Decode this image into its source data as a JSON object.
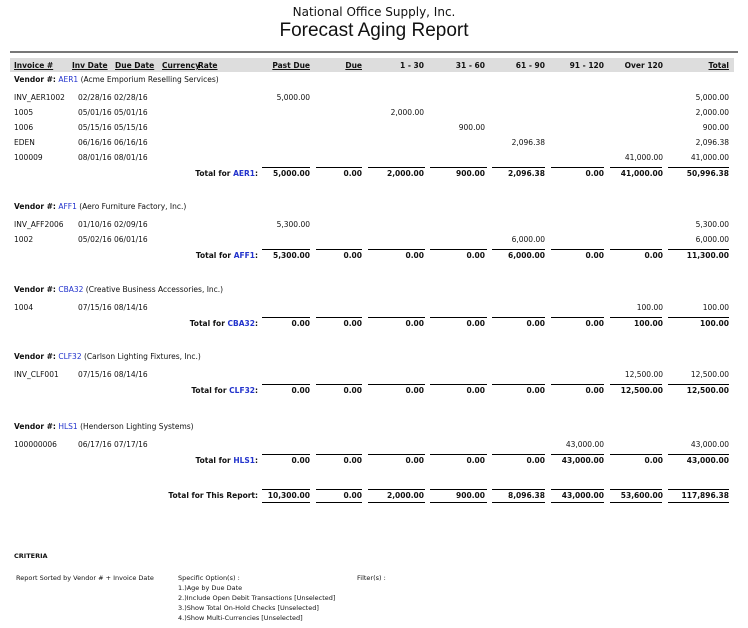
{
  "company": "National Office Supply, Inc.",
  "title": "Forecast Aging Report",
  "columns": {
    "invoice": "Invoice #",
    "inv_date": "Inv Date",
    "due_date": "Due Date",
    "currency": "Currency",
    "rate": "Rate",
    "past_due": "Past Due",
    "due": "Due",
    "d1_30": "1 - 30",
    "d31_60": "31 - 60",
    "d61_90": "61 - 90",
    "d91_120": "91 - 120",
    "over120": "Over 120",
    "total": "Total"
  },
  "vendor_label": "Vendor #:",
  "total_for_label": "Total for",
  "vendors": [
    {
      "id": "AER1",
      "name": "(Acme Emporium Reselling Services)",
      "rows": [
        {
          "invoice": "INV_AER1002",
          "inv_date": "02/28/16",
          "due_date": "02/28/16",
          "vals": [
            "5,000.00",
            "",
            "",
            "",
            "",
            "",
            "",
            "5,000.00"
          ]
        },
        {
          "invoice": "1005",
          "inv_date": "05/01/16",
          "due_date": "05/01/16",
          "vals": [
            "",
            "",
            "2,000.00",
            "",
            "",
            "",
            "",
            "2,000.00"
          ]
        },
        {
          "invoice": "1006",
          "inv_date": "05/15/16",
          "due_date": "05/15/16",
          "vals": [
            "",
            "",
            "",
            "900.00",
            "",
            "",
            "",
            "900.00"
          ]
        },
        {
          "invoice": "EDEN",
          "inv_date": "06/16/16",
          "due_date": "06/16/16",
          "vals": [
            "",
            "",
            "",
            "",
            "2,096.38",
            "",
            "",
            "2,096.38"
          ]
        },
        {
          "invoice": "100009",
          "inv_date": "08/01/16",
          "due_date": "08/01/16",
          "vals": [
            "",
            "",
            "",
            "",
            "",
            "",
            "41,000.00",
            "41,000.00"
          ]
        }
      ],
      "totals": [
        "5,000.00",
        "0.00",
        "2,000.00",
        "900.00",
        "2,096.38",
        "0.00",
        "41,000.00",
        "50,996.38"
      ]
    },
    {
      "id": "AFF1",
      "name": "(Aero Furniture Factory, Inc.)",
      "rows": [
        {
          "invoice": "INV_AFF2006",
          "inv_date": "01/10/16",
          "due_date": "02/09/16",
          "vals": [
            "5,300.00",
            "",
            "",
            "",
            "",
            "",
            "",
            "5,300.00"
          ]
        },
        {
          "invoice": "1002",
          "inv_date": "05/02/16",
          "due_date": "06/01/16",
          "vals": [
            "",
            "",
            "",
            "",
            "6,000.00",
            "",
            "",
            "6,000.00"
          ]
        }
      ],
      "totals": [
        "5,300.00",
        "0.00",
        "0.00",
        "0.00",
        "6,000.00",
        "0.00",
        "0.00",
        "11,300.00"
      ]
    },
    {
      "id": "CBA32",
      "name": "(Creative Business Accessories, Inc.)",
      "rows": [
        {
          "invoice": "1004",
          "inv_date": "07/15/16",
          "due_date": "08/14/16",
          "vals": [
            "",
            "",
            "",
            "",
            "",
            "",
            "100.00",
            "100.00"
          ]
        }
      ],
      "totals": [
        "0.00",
        "0.00",
        "0.00",
        "0.00",
        "0.00",
        "0.00",
        "100.00",
        "100.00"
      ]
    },
    {
      "id": "CLF32",
      "name": "(Carlson Lighting Fixtures, Inc.)",
      "rows": [
        {
          "invoice": "INV_CLF001",
          "inv_date": "07/15/16",
          "due_date": "08/14/16",
          "vals": [
            "",
            "",
            "",
            "",
            "",
            "",
            "12,500.00",
            "12,500.00"
          ]
        }
      ],
      "totals": [
        "0.00",
        "0.00",
        "0.00",
        "0.00",
        "0.00",
        "0.00",
        "12,500.00",
        "12,500.00"
      ]
    },
    {
      "id": "HLS1",
      "name": "(Henderson Lighting Systems)",
      "rows": [
        {
          "invoice": "100000006",
          "inv_date": "06/17/16",
          "due_date": "07/17/16",
          "vals": [
            "",
            "",
            "",
            "",
            "",
            "43,000.00",
            "",
            "43,000.00"
          ]
        }
      ],
      "totals": [
        "0.00",
        "0.00",
        "0.00",
        "0.00",
        "0.00",
        "43,000.00",
        "0.00",
        "43,000.00"
      ]
    }
  ],
  "grand_total": {
    "label": "Total for This Report:",
    "values": [
      "10,300.00",
      "0.00",
      "2,000.00",
      "900.00",
      "8,096.38",
      "43,000.00",
      "53,600.00",
      "117,896.38"
    ]
  },
  "criteria": {
    "heading": "CRITERIA",
    "sorted": "Report Sorted by Vendor # + Invoice Date",
    "options_label": "Specific Option(s) :",
    "options": [
      "1.)Age by Due Date",
      "2.)Include Open Debit Transactions [Unselected]",
      "3.)Show Total On-Hold Checks [Unselected]",
      "4.)Show Multi-Currencies [Unselected]"
    ],
    "filters_label": "Filter(s) :"
  }
}
